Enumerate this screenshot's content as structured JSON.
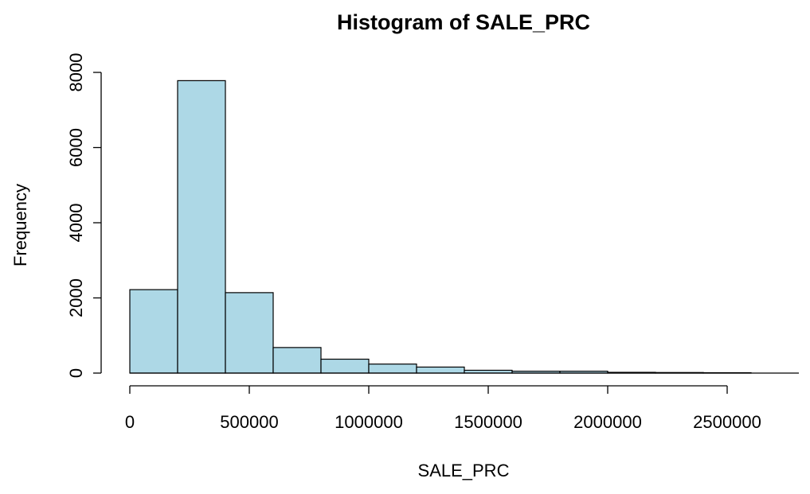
{
  "chart_data": {
    "type": "bar",
    "title": "Histogram of SALE_PRC",
    "xlabel": "SALE_PRC",
    "ylabel": "Frequency",
    "bin_width": 200000,
    "bin_starts": [
      0,
      200000,
      400000,
      600000,
      800000,
      1000000,
      1200000,
      1400000,
      1600000,
      1800000,
      2000000,
      2200000,
      2400000
    ],
    "values": [
      2220,
      7780,
      2140,
      680,
      370,
      240,
      160,
      75,
      50,
      50,
      20,
      15,
      10
    ],
    "xlim": [
      0,
      2800000
    ],
    "ylim": [
      0,
      8000
    ],
    "x_ticks": [
      0,
      500000,
      1000000,
      1500000,
      2000000,
      2500000
    ],
    "x_tick_labels": [
      "0",
      "500000",
      "1000000",
      "1500000",
      "2000000",
      "2500000"
    ],
    "y_ticks": [
      0,
      2000,
      4000,
      6000,
      8000
    ],
    "y_tick_labels": [
      "0",
      "2000",
      "4000",
      "6000",
      "8000"
    ],
    "bar_color": "#add8e6",
    "grid": false
  }
}
